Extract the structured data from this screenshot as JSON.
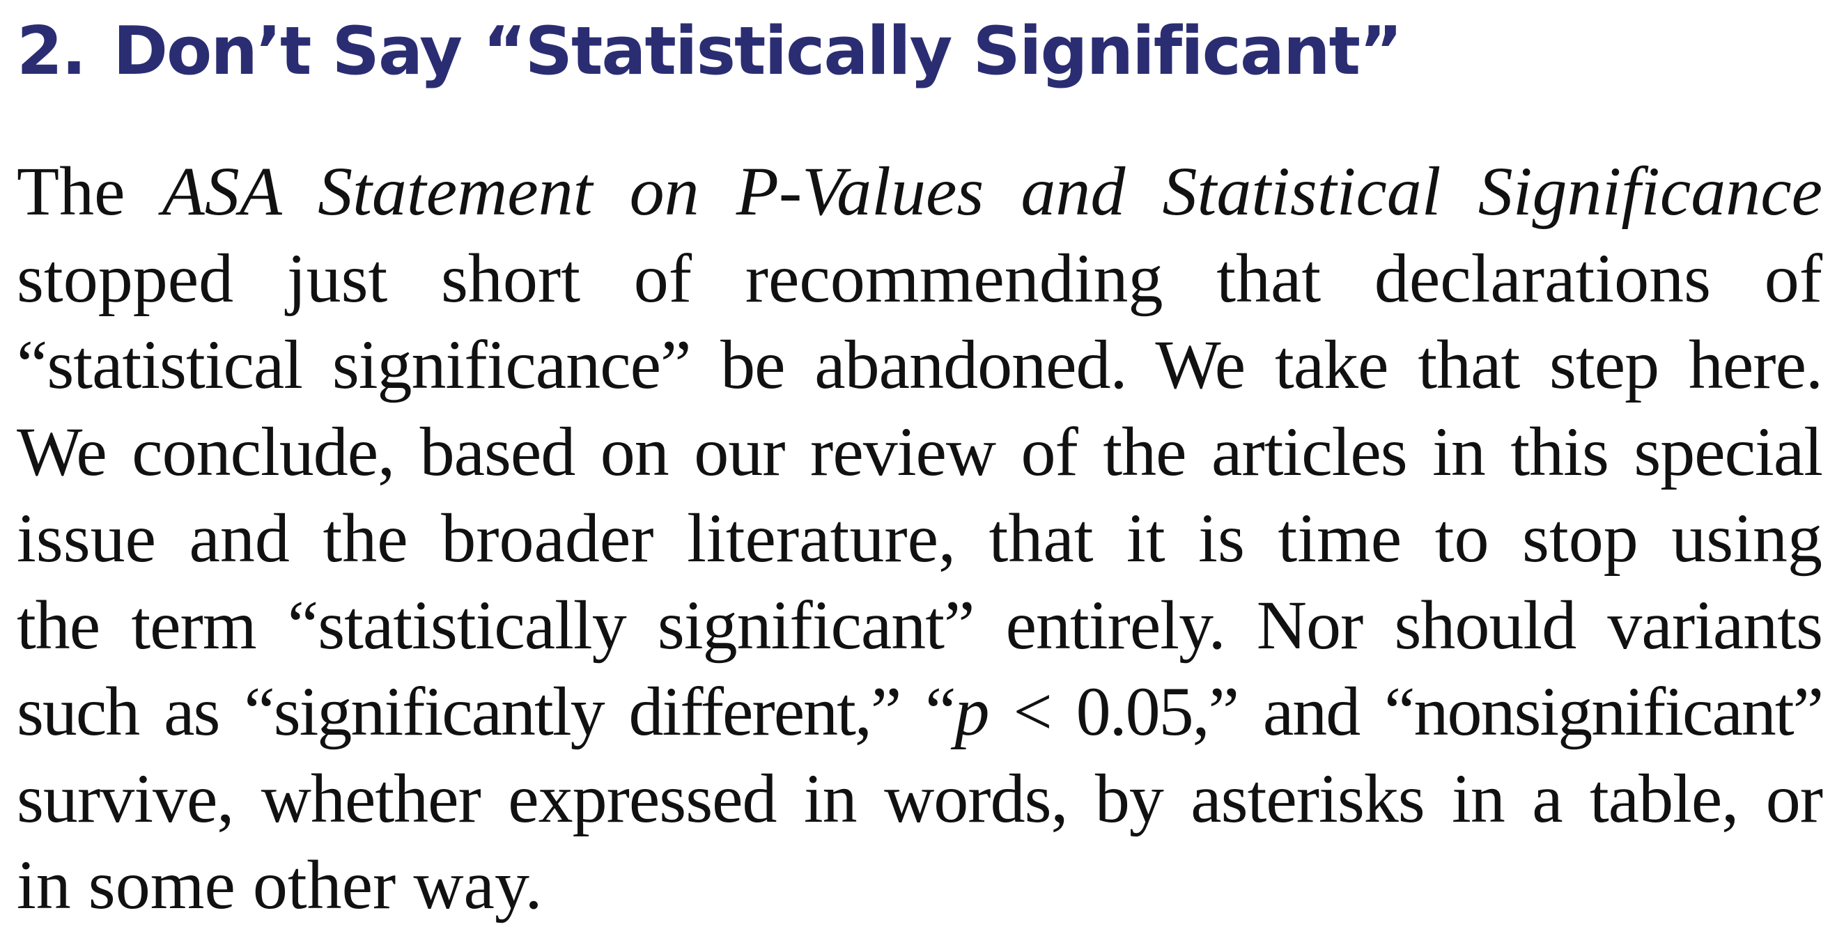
{
  "heading": {
    "number": "2.",
    "title": "Don’t Say “Statistically Significant”"
  },
  "colors": {
    "heading": "#2b2d73",
    "body": "#111111",
    "background": "#ffffff"
  },
  "paragraph": {
    "l1_a": "The",
    "l1_italic": "ASA Statement on P-Values and Statistical Significance",
    "l2": "stopped just short of recommending that declarations of",
    "l3": "“statistical significance” be abandoned. We take that step here.",
    "l4": "We conclude, based on our review of the articles in this special",
    "l5": "issue and the broader literature, that it is time to stop using",
    "l6": "the term “statistically significant” entirely. Nor should variants",
    "l7_a": "such as “significantly different,” “",
    "l7_p": "p",
    "l7_b": " < 0.05,” and “nonsignificant”",
    "l8": "survive, whether expressed in words, by asterisks in a table, or",
    "l9": "in some other way."
  }
}
